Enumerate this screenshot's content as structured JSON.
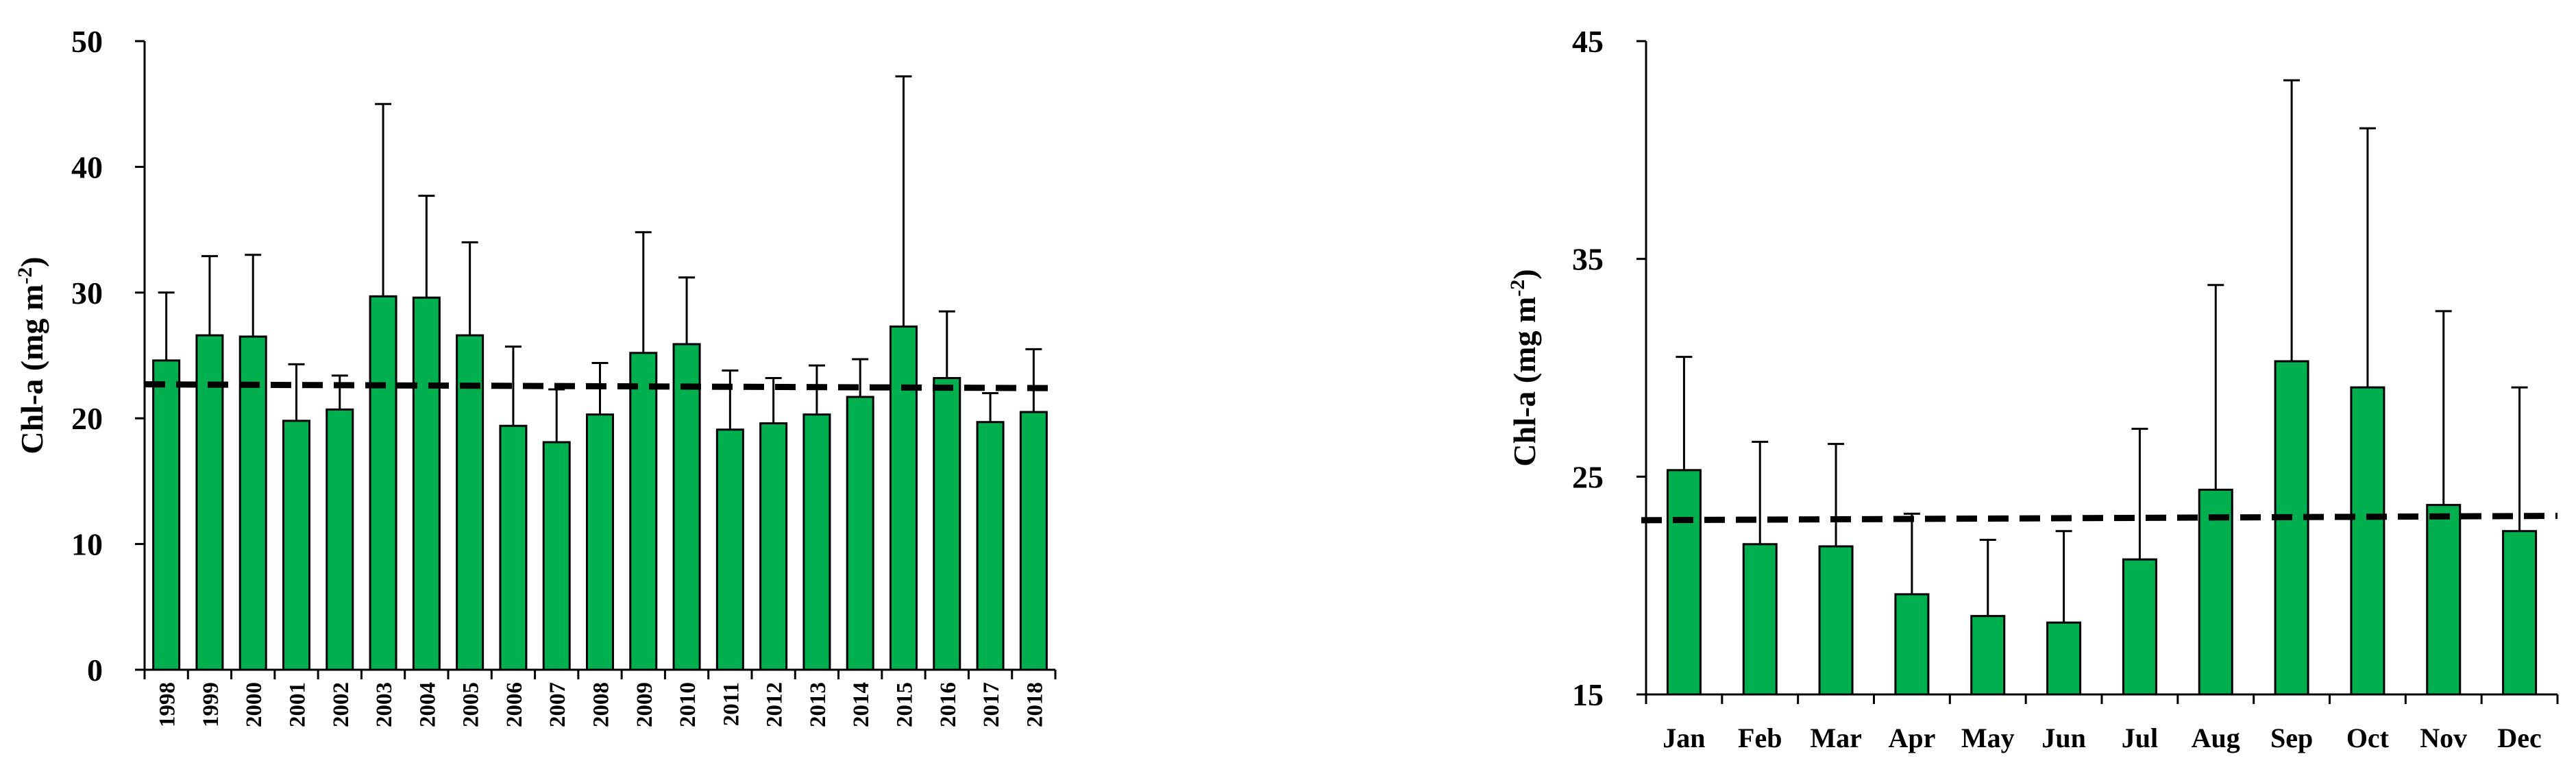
{
  "chart_data": [
    {
      "type": "bar",
      "ylabel": "Chl-a (mg m-2)",
      "ylim": [
        0,
        50
      ],
      "yticks": [
        0,
        10,
        20,
        30,
        40,
        50
      ],
      "categories": [
        "1998",
        "1999",
        "2000",
        "2001",
        "2002",
        "2003",
        "2004",
        "2005",
        "2006",
        "2007",
        "2008",
        "2009",
        "2010",
        "2011",
        "2012",
        "2013",
        "2014",
        "2015",
        "2016",
        "2017",
        "2018"
      ],
      "series": [
        {
          "values": [
            24.6,
            26.6,
            26.5,
            19.8,
            20.7,
            29.7,
            29.6,
            26.6,
            19.4,
            18.1,
            20.3,
            25.2,
            25.9,
            19.1,
            19.6,
            20.3,
            21.7,
            27.3,
            23.2,
            19.7,
            20.5
          ],
          "error_upper": [
            30.0,
            32.9,
            33.0,
            24.3,
            23.4,
            45.0,
            37.7,
            34.0,
            25.7,
            22.3,
            24.4,
            34.8,
            31.2,
            23.8,
            23.2,
            24.2,
            24.7,
            47.2,
            28.5,
            22.0,
            25.5
          ]
        }
      ],
      "reference_line": [
        22.7,
        22.4
      ],
      "xtick_rotation": "vertical"
    },
    {
      "type": "bar",
      "ylabel": "Chl-a (mg m-2)",
      "ylim": [
        15,
        45
      ],
      "yticks": [
        15,
        25,
        35,
        45
      ],
      "categories": [
        "Jan",
        "Feb",
        "Mar",
        "Apr",
        "May",
        "Jun",
        "Jul",
        "Aug",
        "Sep",
        "Oct",
        "Nov",
        "Dec"
      ],
      "series": [
        {
          "values": [
            25.3,
            21.9,
            21.8,
            19.6,
            18.6,
            18.3,
            21.2,
            24.4,
            30.3,
            29.1,
            23.7,
            22.5
          ],
          "error_upper": [
            30.5,
            26.6,
            26.5,
            23.3,
            22.1,
            22.5,
            27.2,
            33.8,
            43.2,
            41.0,
            32.6,
            29.1
          ]
        }
      ],
      "reference_line": [
        23.0,
        23.2
      ],
      "xtick_rotation": "horizontal"
    }
  ]
}
